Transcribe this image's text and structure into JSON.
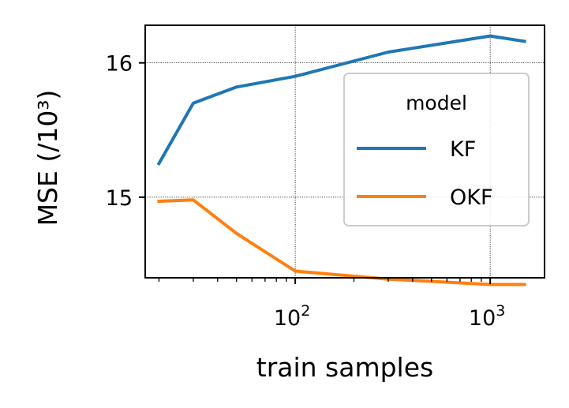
{
  "chart_data": {
    "type": "line",
    "x": [
      20,
      30,
      50,
      100,
      300,
      1000,
      1500
    ],
    "series": [
      {
        "name": "KF",
        "color": "#1f77b4",
        "values": [
          15.25,
          15.7,
          15.82,
          15.9,
          16.08,
          16.2,
          16.16
        ]
      },
      {
        "name": "OKF",
        "color": "#ff7f0e",
        "values": [
          14.97,
          14.98,
          14.73,
          14.45,
          14.39,
          14.35,
          14.35
        ]
      }
    ],
    "xlabel": "train samples",
    "ylabel": "MSE (/10³)",
    "xscale": "log",
    "xlim": [
      17,
      1900
    ],
    "ylim": [
      14.4,
      16.28
    ],
    "yticks": [
      15,
      16
    ],
    "ytick_labels": [
      "15",
      "16"
    ],
    "xticks": [
      100,
      1000
    ],
    "xtick_labels": [
      {
        "base": "10",
        "exp": "2"
      },
      {
        "base": "10",
        "exp": "3"
      }
    ],
    "grid": true,
    "legend": {
      "title": "model",
      "placement": "right"
    }
  }
}
